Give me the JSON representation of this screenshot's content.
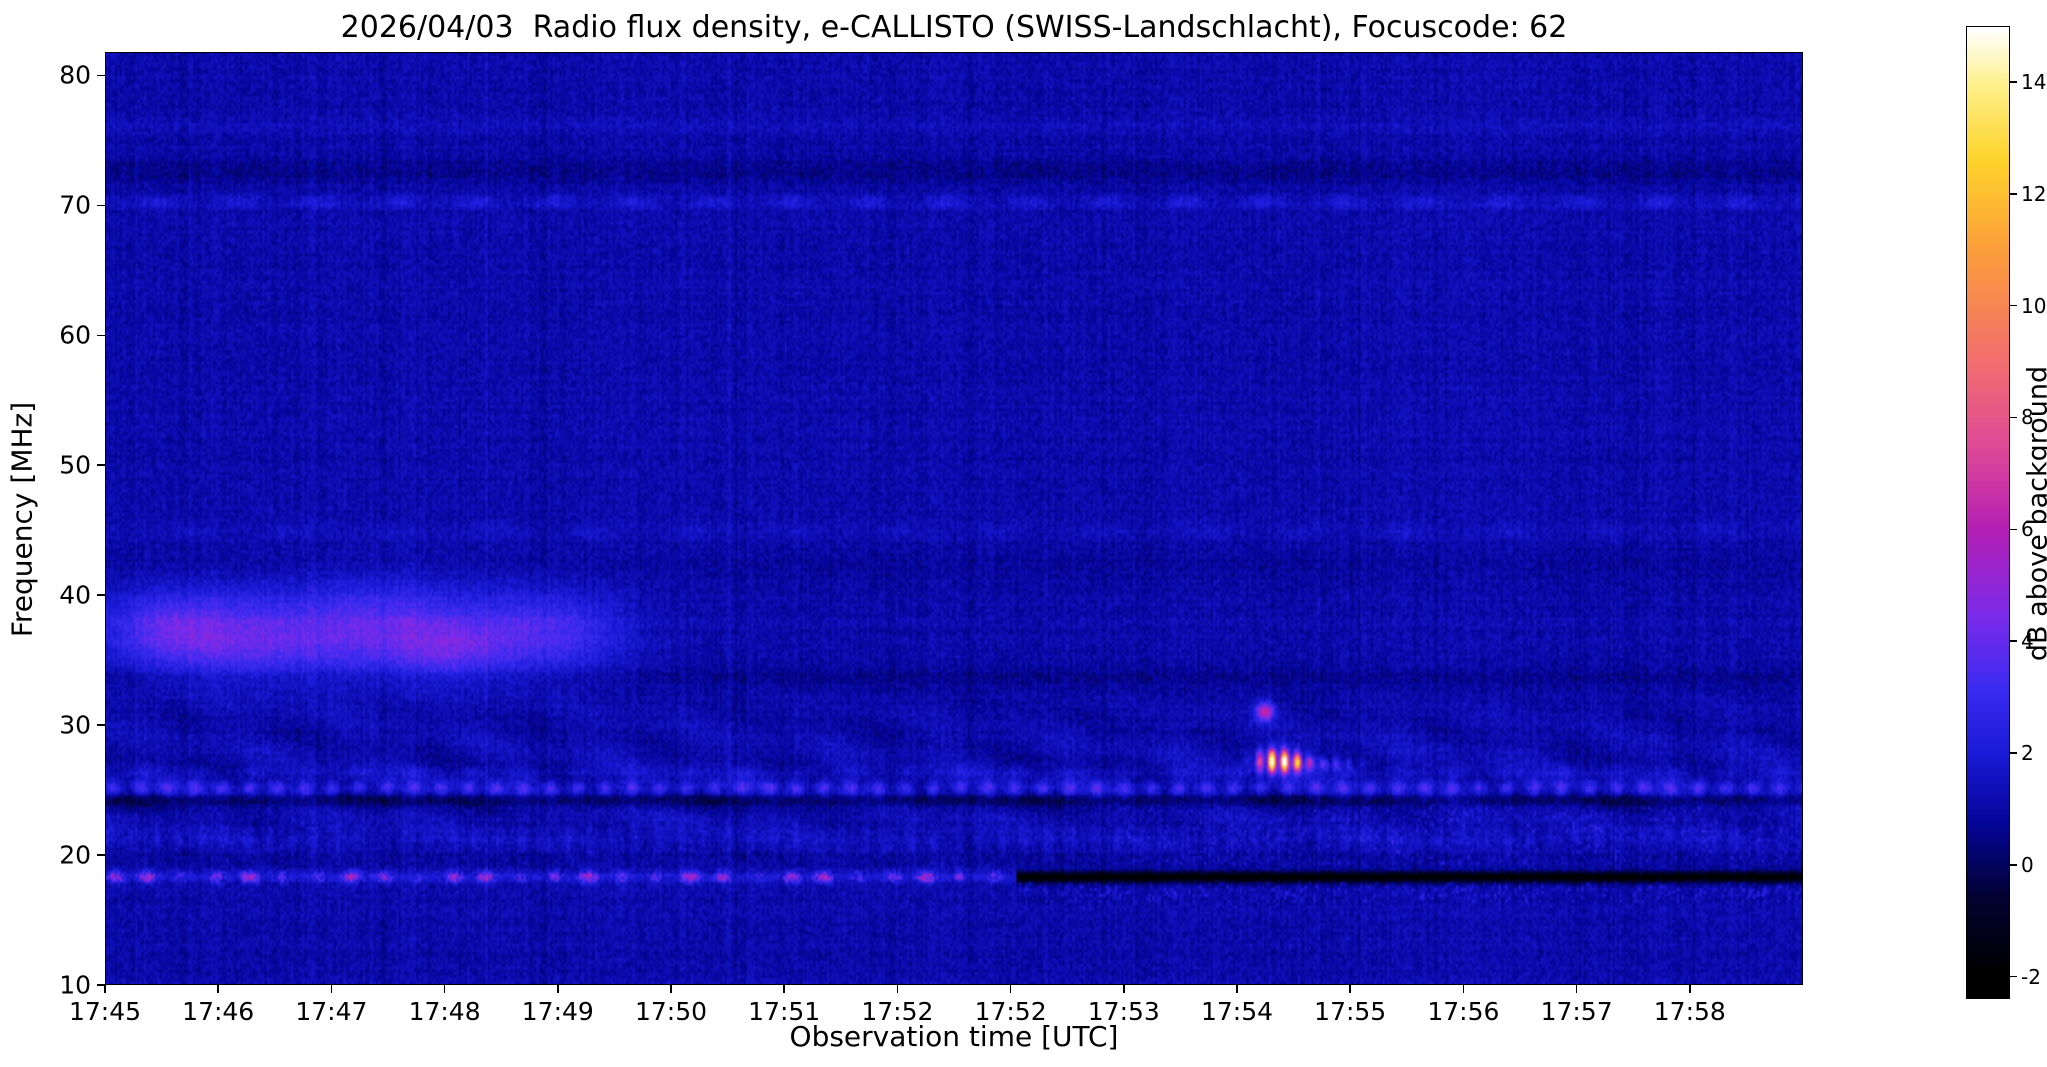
{
  "chart_data": {
    "type": "heatmap",
    "subtype": "radio-spectrogram",
    "title": "2026/04/03  Radio flux density, e-CALLISTO (SWISS-Landschlacht), Focuscode: 62",
    "xlabel": "Observation time [UTC]",
    "ylabel": "Frequency [MHz]",
    "x_tick_labels": [
      "17:45",
      "17:46",
      "17:47",
      "17:48",
      "17:49",
      "17:50",
      "17:51",
      "17:52",
      "17:52",
      "17:53",
      "17:54",
      "17:55",
      "17:56",
      "17:57",
      "17:58"
    ],
    "y_tick_values": [
      80,
      70,
      60,
      50,
      40,
      30,
      20,
      10
    ],
    "y_axis": {
      "fmin": 10,
      "fmax": 81.8,
      "unit": "MHz"
    },
    "x_axis": {
      "start": "17:45",
      "span_minutes": 15,
      "unit": "UTC"
    },
    "colorbar": {
      "label": "dB above background",
      "vmin": -2,
      "vmax": 15,
      "bar_vmin": -2.4,
      "bar_vmax": 15,
      "tick_values": [
        14,
        12,
        10,
        8,
        6,
        4,
        2,
        0,
        -2
      ]
    },
    "colormap": {
      "name": "gnuplot2-like",
      "stops": [
        [
          0.0,
          "#000000"
        ],
        [
          0.08,
          "#020230"
        ],
        [
          0.16,
          "#05059a"
        ],
        [
          0.235,
          "#1b1bd8"
        ],
        [
          0.3,
          "#3a2bf0"
        ],
        [
          0.38,
          "#7b2bea"
        ],
        [
          0.47,
          "#b41fb4"
        ],
        [
          0.56,
          "#e04a96"
        ],
        [
          0.66,
          "#f4736a"
        ],
        [
          0.76,
          "#fb9b3c"
        ],
        [
          0.86,
          "#fdd32a"
        ],
        [
          0.94,
          "#fef08a"
        ],
        [
          1.0,
          "#ffffff"
        ]
      ]
    },
    "background_level_db": 1.05,
    "features": {
      "ripples": {
        "fmin": 18.6,
        "fmax": 33.5,
        "amp": 0.5
      },
      "enhancement": {
        "f": 37.5,
        "sf": 2.9,
        "amp": 0.55,
        "t_end": 4.55
      },
      "hbands": [
        {
          "f": 70.3,
          "amp": 0.75,
          "w": 0.35,
          "dash": 9
        },
        {
          "f": 72.7,
          "amp": -0.5,
          "w": 0.8
        },
        {
          "f": 76.2,
          "amp": 0.25,
          "w": 0.4
        },
        {
          "f": 44.9,
          "amp": 0.35,
          "w": 0.5,
          "dash": 7
        },
        {
          "f": 42.5,
          "amp": -0.25,
          "w": 1.1
        },
        {
          "f": 33.8,
          "amp": -0.45,
          "w": 0.7
        },
        {
          "f": 26.3,
          "amp": 0.5,
          "w": 0.35,
          "dash": 13
        },
        {
          "f": 25.1,
          "amp": 1.7,
          "w": 0.4,
          "dash": 26
        },
        {
          "f": 24.2,
          "amp": -1.1,
          "w": 0.35
        },
        {
          "f": 21.2,
          "amp": 0.45,
          "w": 0.9,
          "dash": 31
        },
        {
          "f": 19.8,
          "amp": -0.4,
          "w": 0.4
        }
      ],
      "blobs": [
        {
          "t": 0.55,
          "f": 37.3,
          "st": 0.35,
          "sf": 2.0,
          "amp": 1.9
        },
        {
          "t": 1.25,
          "f": 36.6,
          "st": 0.5,
          "sf": 2.3,
          "amp": 2.2
        },
        {
          "t": 2.45,
          "f": 37.2,
          "st": 0.55,
          "sf": 2.5,
          "amp": 2.3
        },
        {
          "t": 3.05,
          "f": 35.8,
          "st": 0.3,
          "sf": 1.6,
          "amp": 1.5
        },
        {
          "t": 3.85,
          "f": 36.9,
          "st": 0.45,
          "sf": 2.2,
          "amp": 2.0
        },
        {
          "t": 10.25,
          "f": 31.0,
          "st": 0.055,
          "sf": 0.5,
          "amp": 5.5
        },
        {
          "t": 10.35,
          "f": 27.2,
          "st": 0.11,
          "sf": 0.6,
          "amp": 14,
          "mod": 1
        },
        {
          "t": 10.55,
          "f": 27.1,
          "st": 0.07,
          "sf": 0.45,
          "amp": 6,
          "mod": 1
        },
        {
          "t": 10.8,
          "f": 27.0,
          "st": 0.2,
          "sf": 0.35,
          "amp": 2.6,
          "mod": 1
        }
      ],
      "line18": {
        "f": 18.25,
        "t_switch": 8.05
      },
      "speckle_band": {
        "fmin": 19.3,
        "fmax": 23.7,
        "t_strong_after": 9
      }
    }
  }
}
